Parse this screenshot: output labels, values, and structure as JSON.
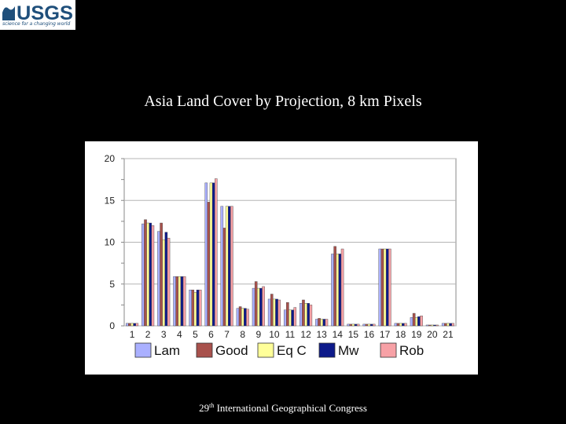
{
  "logo": {
    "wordmark": "USGS",
    "tagline": "science for a changing world"
  },
  "slide": {
    "title": "Asia Land Cover by Projection, 8 km Pixels",
    "footer_ordinal_number": "29",
    "footer_ordinal_suffix": "th",
    "footer_rest": " International Geographical Congress"
  },
  "chart_data": {
    "type": "bar",
    "title": "",
    "xlabel": "",
    "ylabel": "",
    "ylim": [
      0,
      20
    ],
    "yticks": [
      0,
      5,
      10,
      15,
      20
    ],
    "grid": true,
    "legend": "bottom",
    "categories": [
      "1",
      "2",
      "3",
      "4",
      "5",
      "6",
      "7",
      "8",
      "9",
      "10",
      "11",
      "12",
      "13",
      "14",
      "15",
      "16",
      "17",
      "18",
      "19",
      "20",
      "21"
    ],
    "series": [
      {
        "name": "Lam",
        "color": "#aab0ff",
        "values": [
          0.3,
          12.2,
          11.3,
          5.9,
          4.3,
          17.1,
          14.3,
          2.1,
          4.5,
          3.2,
          1.9,
          2.7,
          0.8,
          8.6,
          0.2,
          0.2,
          9.2,
          0.3,
          1.0,
          0.1,
          0.3
        ]
      },
      {
        "name": "Good",
        "color": "#a8514c",
        "values": [
          0.3,
          12.7,
          12.3,
          5.9,
          4.3,
          14.8,
          11.7,
          2.3,
          5.3,
          3.8,
          2.8,
          3.1,
          0.9,
          9.5,
          0.2,
          0.2,
          9.2,
          0.3,
          1.5,
          0.1,
          0.3
        ]
      },
      {
        "name": "Eq C",
        "color": "#ffff99",
        "values": [
          0.3,
          12.3,
          10.3,
          5.9,
          4.0,
          17.1,
          14.3,
          2.1,
          4.5,
          3.2,
          1.9,
          2.7,
          0.8,
          8.6,
          0.2,
          0.2,
          9.2,
          0.3,
          1.0,
          0.1,
          0.3
        ]
      },
      {
        "name": "Mw",
        "color": "#0d1a8a",
        "values": [
          0.3,
          12.3,
          11.2,
          5.9,
          4.3,
          17.1,
          14.3,
          2.1,
          4.5,
          3.2,
          1.9,
          2.7,
          0.8,
          8.6,
          0.2,
          0.2,
          9.2,
          0.3,
          1.1,
          0.1,
          0.3
        ]
      },
      {
        "name": "Rob",
        "color": "#f7a1a6",
        "values": [
          0.3,
          12.0,
          10.5,
          5.9,
          4.3,
          17.6,
          14.3,
          2.0,
          4.7,
          3.1,
          2.2,
          2.5,
          0.8,
          9.2,
          0.2,
          0.2,
          9.2,
          0.3,
          1.2,
          0.1,
          0.3
        ]
      }
    ]
  }
}
